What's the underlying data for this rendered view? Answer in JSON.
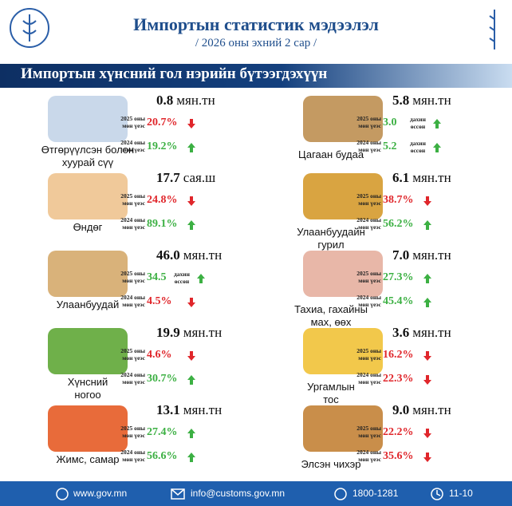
{
  "header": {
    "title": "Импортын статистик мэдээлэл",
    "subtitle": "/ 2026 оны эхний 2 сар /"
  },
  "section_title": "Импортын хүнсний гол нэрийн бүтээгдэхүүн",
  "items": [
    {
      "name": "Өтгөрүүлсэн болон\nхуурай сүү",
      "amount": "0.8",
      "unit": "мян.тн",
      "rows": [
        {
          "period": "2025 оны",
          "suffix": "мөн үеэс",
          "value": "20.7%",
          "trend": "down"
        },
        {
          "period": "2024 оны",
          "suffix": "мөн үеэс",
          "value": "19.2%",
          "trend": "up"
        }
      ]
    },
    {
      "name": "Өндөг",
      "amount": "17.7",
      "unit": "сая.ш",
      "rows": [
        {
          "period": "2025 оны",
          "suffix": "мөн үеэс",
          "value": "24.8%",
          "trend": "down"
        },
        {
          "period": "2024 оны",
          "suffix": "мөн үеэс",
          "value": "89.1%",
          "trend": "up"
        }
      ]
    },
    {
      "name": "Улаанбуудай",
      "amount": "46.0",
      "unit": "мян.тн",
      "rows": [
        {
          "period": "2025 оны",
          "suffix": "мөн үеэс",
          "value": "34.5",
          "note": "дахин\nөссөн",
          "trend": "up"
        },
        {
          "period": "2024 оны",
          "suffix": "мөн үеэс",
          "value": "4.5%",
          "trend": "down"
        }
      ]
    },
    {
      "name": "Хүнсний\nногоо",
      "amount": "19.9",
      "unit": "мян.тн",
      "rows": [
        {
          "period": "2025 оны",
          "suffix": "мөн үеэс",
          "value": "4.6%",
          "trend": "down"
        },
        {
          "period": "2024 оны",
          "suffix": "мөн үеэс",
          "value": "30.7%",
          "trend": "up"
        }
      ]
    },
    {
      "name": "Жимс, самар",
      "amount": "13.1",
      "unit": "мян.тн",
      "rows": [
        {
          "period": "2025 оны",
          "suffix": "мөн үеэс",
          "value": "27.4%",
          "trend": "up"
        },
        {
          "period": "2024 оны",
          "suffix": "мөн үеэс",
          "value": "56.6%",
          "trend": "up"
        }
      ]
    },
    {
      "name": "Цагаан будаа",
      "amount": "5.8",
      "unit": "мян.тн",
      "rows": [
        {
          "period": "2025 оны",
          "suffix": "мөн үеэс",
          "value": "3.0",
          "note": "дахин\nөссөн",
          "trend": "up"
        },
        {
          "period": "2024 оны",
          "suffix": "мөн үеэс",
          "value": "5.2",
          "note": "дахин\nөссөн",
          "trend": "up"
        }
      ]
    },
    {
      "name": "Улаанбуудайн\nгурил",
      "amount": "6.1",
      "unit": "мян.тн",
      "rows": [
        {
          "period": "2025 оны",
          "suffix": "мөн үеэс",
          "value": "38.7%",
          "trend": "down"
        },
        {
          "period": "2024 оны",
          "suffix": "мөн үеэс",
          "value": "56.2%",
          "trend": "up"
        }
      ]
    },
    {
      "name": "Тахиа, гахайны\nмах, өөх",
      "amount": "7.0",
      "unit": "мян.тн",
      "rows": [
        {
          "period": "2025 оны",
          "suffix": "мөн үеэс",
          "value": "27.3%",
          "trend": "up"
        },
        {
          "period": "2024 оны",
          "suffix": "мөн үеэс",
          "value": "45.4%",
          "trend": "up"
        }
      ]
    },
    {
      "name": "Ургамлын\nтос",
      "amount": "3.6",
      "unit": "мян.тн",
      "rows": [
        {
          "period": "2025 оны",
          "suffix": "мөн үеэс",
          "value": "16.2%",
          "trend": "down"
        },
        {
          "period": "2024 оны",
          "suffix": "мөн үеэс",
          "value": "22.3%",
          "trend": "down"
        }
      ]
    },
    {
      "name": "Элсэн чихэр",
      "amount": "9.0",
      "unit": "мян.тн",
      "rows": [
        {
          "period": "2025 оны",
          "suffix": "мөн үеэс",
          "value": "22.2%",
          "trend": "down"
        },
        {
          "period": "2024 оны",
          "suffix": "мөн үеэс",
          "value": "35.6%",
          "trend": "down"
        }
      ]
    }
  ],
  "footer": {
    "website": "www.gov.mn",
    "email": "info@customs.gov.mn",
    "phone": "1800-1281",
    "hours": "11-10"
  }
}
